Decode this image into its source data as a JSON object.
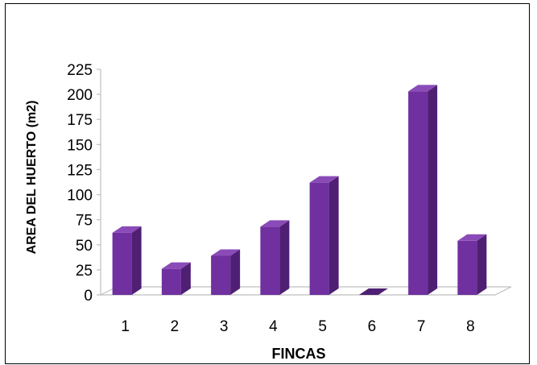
{
  "chart_data": {
    "type": "bar",
    "categories": [
      "1",
      "2",
      "3",
      "4",
      "5",
      "6",
      "7",
      "8"
    ],
    "values": [
      62,
      26,
      39,
      68,
      112,
      0,
      203,
      54
    ],
    "xlabel": "FINCAS",
    "ylabel": "AREA DEL HUERTO (m2)",
    "ylim": [
      0,
      225
    ],
    "yticks": [
      0,
      25,
      50,
      75,
      100,
      125,
      150,
      175,
      200,
      225
    ],
    "grid": false,
    "legend": "none",
    "style": "3d-column",
    "colors": {
      "front": "#7030a0",
      "side": "#4f1f74",
      "top": "#8a4bb8",
      "floor": "#bfbfbf"
    }
  }
}
